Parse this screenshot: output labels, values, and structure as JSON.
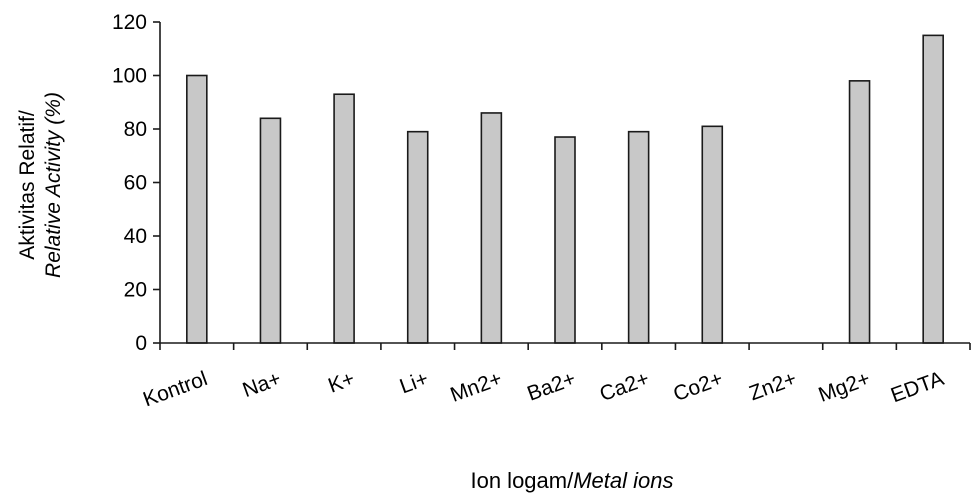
{
  "chart_data": {
    "type": "bar",
    "categories": [
      "Kontrol",
      "Na+",
      "K+",
      "Li+",
      "Mn2+",
      "Ba2+",
      "Ca2+",
      "Co2+",
      "Zn2+",
      "Mg2+",
      "EDTA"
    ],
    "values": [
      100,
      84,
      93,
      79,
      86,
      77,
      79,
      81,
      0,
      98,
      115
    ],
    "ylabel_line1": "Aktivitas Relatif/",
    "ylabel_line2": "Relative Activity (%)",
    "xlabel_main": "Ion logam/",
    "xlabel_italic": "Metal ions",
    "ylim": [
      0,
      120
    ],
    "yticks": [
      0,
      20,
      40,
      60,
      80,
      100,
      120
    ],
    "grid": false,
    "bar_color": "#c8c8c8",
    "edge_color": "#1a1a1a"
  }
}
